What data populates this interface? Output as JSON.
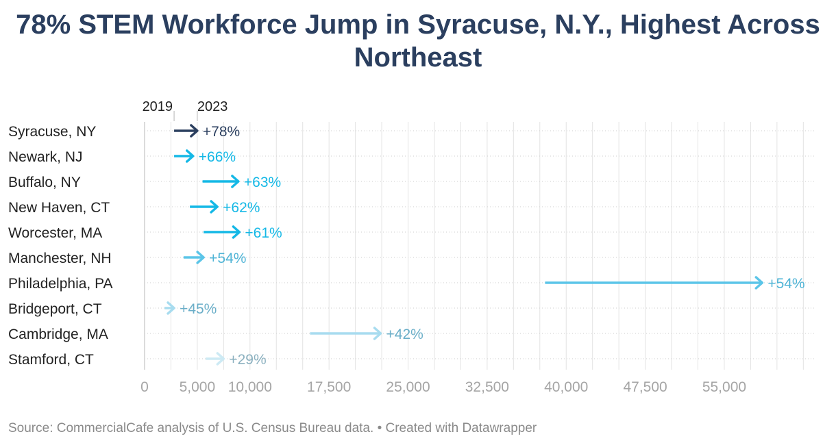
{
  "title": "78% STEM Workforce Jump in Syracuse, N.Y., Highest Across Northeast",
  "source": "Source: CommercialCafe analysis of U.S. Census Bureau data. • Created with Datawrapper",
  "colors": {
    "title": "#2b3f5f",
    "highlight": "#2b3f5f",
    "strong": "#14b8e6",
    "medium": "#5bc5e8",
    "light": "#a8dcef",
    "lighter": "#cdeaf4"
  },
  "chart_data": {
    "type": "arrow",
    "header_labels": [
      "2019",
      "2023"
    ],
    "xlim": [
      0,
      63000
    ],
    "ticks": [
      0,
      5000,
      10000,
      17500,
      25000,
      32500,
      40000,
      47500,
      55000
    ],
    "tick_labels": [
      "0",
      "5,000",
      "10,000",
      "17,500",
      "25,000",
      "32,500",
      "40,000",
      "47,500",
      "55,000"
    ],
    "grid": true,
    "rows": [
      {
        "label": "Syracuse, NY",
        "from": 2800,
        "to": 5000,
        "change": "+78%",
        "color": "#2b3f5f",
        "text_color": "#2b3f5f"
      },
      {
        "label": "Newark, NJ",
        "from": 2800,
        "to": 4600,
        "change": "+66%",
        "color": "#14b8e6",
        "text_color": "#14b8e6"
      },
      {
        "label": "Buffalo, NY",
        "from": 5500,
        "to": 8900,
        "change": "+63%",
        "color": "#14b8e6",
        "text_color": "#14b8e6"
      },
      {
        "label": "New Haven, CT",
        "from": 4300,
        "to": 6900,
        "change": "+62%",
        "color": "#14b8e6",
        "text_color": "#14b8e6"
      },
      {
        "label": "Worcester, MA",
        "from": 5600,
        "to": 9000,
        "change": "+61%",
        "color": "#14b8e6",
        "text_color": "#14b8e6"
      },
      {
        "label": "Manchester, NH",
        "from": 3700,
        "to": 5600,
        "change": "+54%",
        "color": "#5bc5e8",
        "text_color": "#4fb4d6"
      },
      {
        "label": "Philadelphia, PA",
        "from": 38000,
        "to": 58600,
        "change": "+54%",
        "color": "#5bc5e8",
        "text_color": "#4fb4d6"
      },
      {
        "label": "Bridgeport, CT",
        "from": 1900,
        "to": 2800,
        "change": "+45%",
        "color": "#a8dcef",
        "text_color": "#6aaec8"
      },
      {
        "label": "Cambridge, MA",
        "from": 15700,
        "to": 22400,
        "change": "+42%",
        "color": "#a8dcef",
        "text_color": "#6aaec8"
      },
      {
        "label": "Stamford, CT",
        "from": 5800,
        "to": 7500,
        "change": "+29%",
        "color": "#cdeaf4",
        "text_color": "#8ab0bf"
      }
    ]
  }
}
